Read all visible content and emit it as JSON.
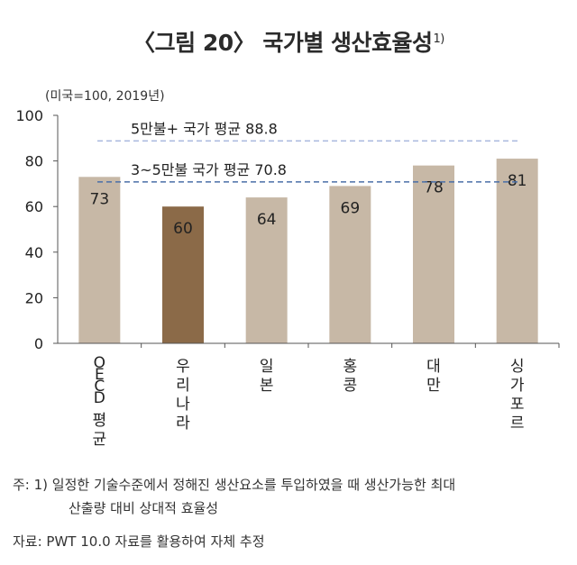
{
  "title": {
    "text": "〈그림 20〉 국가별 생산효율성",
    "sup": "1)"
  },
  "unit": "(미국=100, 2019년)",
  "chart_data": {
    "type": "bar",
    "categories": [
      "OECD 평균",
      "우리나라",
      "일본",
      "홍콩",
      "대만",
      "싱가포르"
    ],
    "values": [
      73,
      60,
      64,
      69,
      78,
      81
    ],
    "value_labels": [
      "73",
      "60",
      "64",
      "69",
      "78",
      "81"
    ],
    "highlight_index": 1,
    "ylim": [
      0,
      100
    ],
    "yticks": [
      0,
      20,
      40,
      60,
      80,
      100
    ],
    "grid": false,
    "reference_lines": [
      {
        "label": "5만불+ 국가 평균 88.8",
        "value": 88.8,
        "color": "#a9b7de"
      },
      {
        "label": "3~5만불 국가 평균 70.8",
        "value": 70.8,
        "color": "#4a6fa8"
      }
    ],
    "colors": {
      "bar": "#c7b8a6",
      "highlight": "#8b6a48",
      "axis": "#555555"
    }
  },
  "notes": {
    "line1": "주: 1) 일정한 기술수준에서 정해진 생산요소를 투입하였을 때 생산가능한 최대",
    "line2": "산출량 대비 상대적 효율성",
    "line3": "자료: PWT 10.0 자료를 활용하여 자체 추정"
  }
}
